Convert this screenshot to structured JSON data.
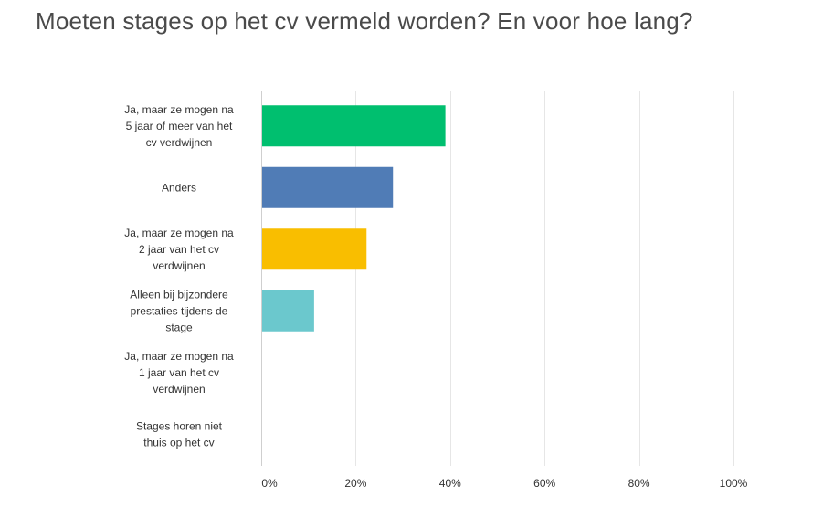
{
  "chart_data": {
    "type": "bar",
    "orientation": "horizontal",
    "title": "Moeten stages op het cv vermeld worden? En voor hoe lang?",
    "categories": [
      "Ja, maar ze mogen na 5 jaar of meer van het cv verdwijnen",
      "Anders",
      "Ja, maar ze mogen na 2 jaar van het cv verdwijnen",
      "Alleen bij bijzondere prestaties tijdens de stage",
      "Ja, maar ze mogen na 1 jaar van het cv verdwijnen",
      "Stages horen niet thuis op het cv"
    ],
    "category_lines": [
      [
        "Ja, maar ze mogen na",
        "5 jaar of meer van het",
        "cv verdwijnen"
      ],
      [
        "Anders"
      ],
      [
        "Ja, maar ze mogen na",
        "2 jaar van het cv",
        "verdwijnen"
      ],
      [
        "Alleen bij bijzondere",
        "prestaties tijdens de",
        "stage"
      ],
      [
        "Ja, maar ze mogen na",
        "1 jaar van het cv",
        "verdwijnen"
      ],
      [
        "Stages horen niet",
        "thuis op het cv"
      ]
    ],
    "values": [
      38.9,
      27.8,
      22.2,
      11.1,
      0,
      0
    ],
    "unit": "%",
    "colors": [
      "#00bf6f",
      "#507cb6",
      "#f9be00",
      "#6bc8cd",
      "#cccccc",
      "#cccccc"
    ],
    "xlim": [
      0,
      100
    ],
    "xticks": [
      0,
      20,
      40,
      60,
      80,
      100
    ],
    "xtick_labels": [
      "0%",
      "20%",
      "40%",
      "60%",
      "80%",
      "100%"
    ],
    "grid": true,
    "legend": "none"
  }
}
